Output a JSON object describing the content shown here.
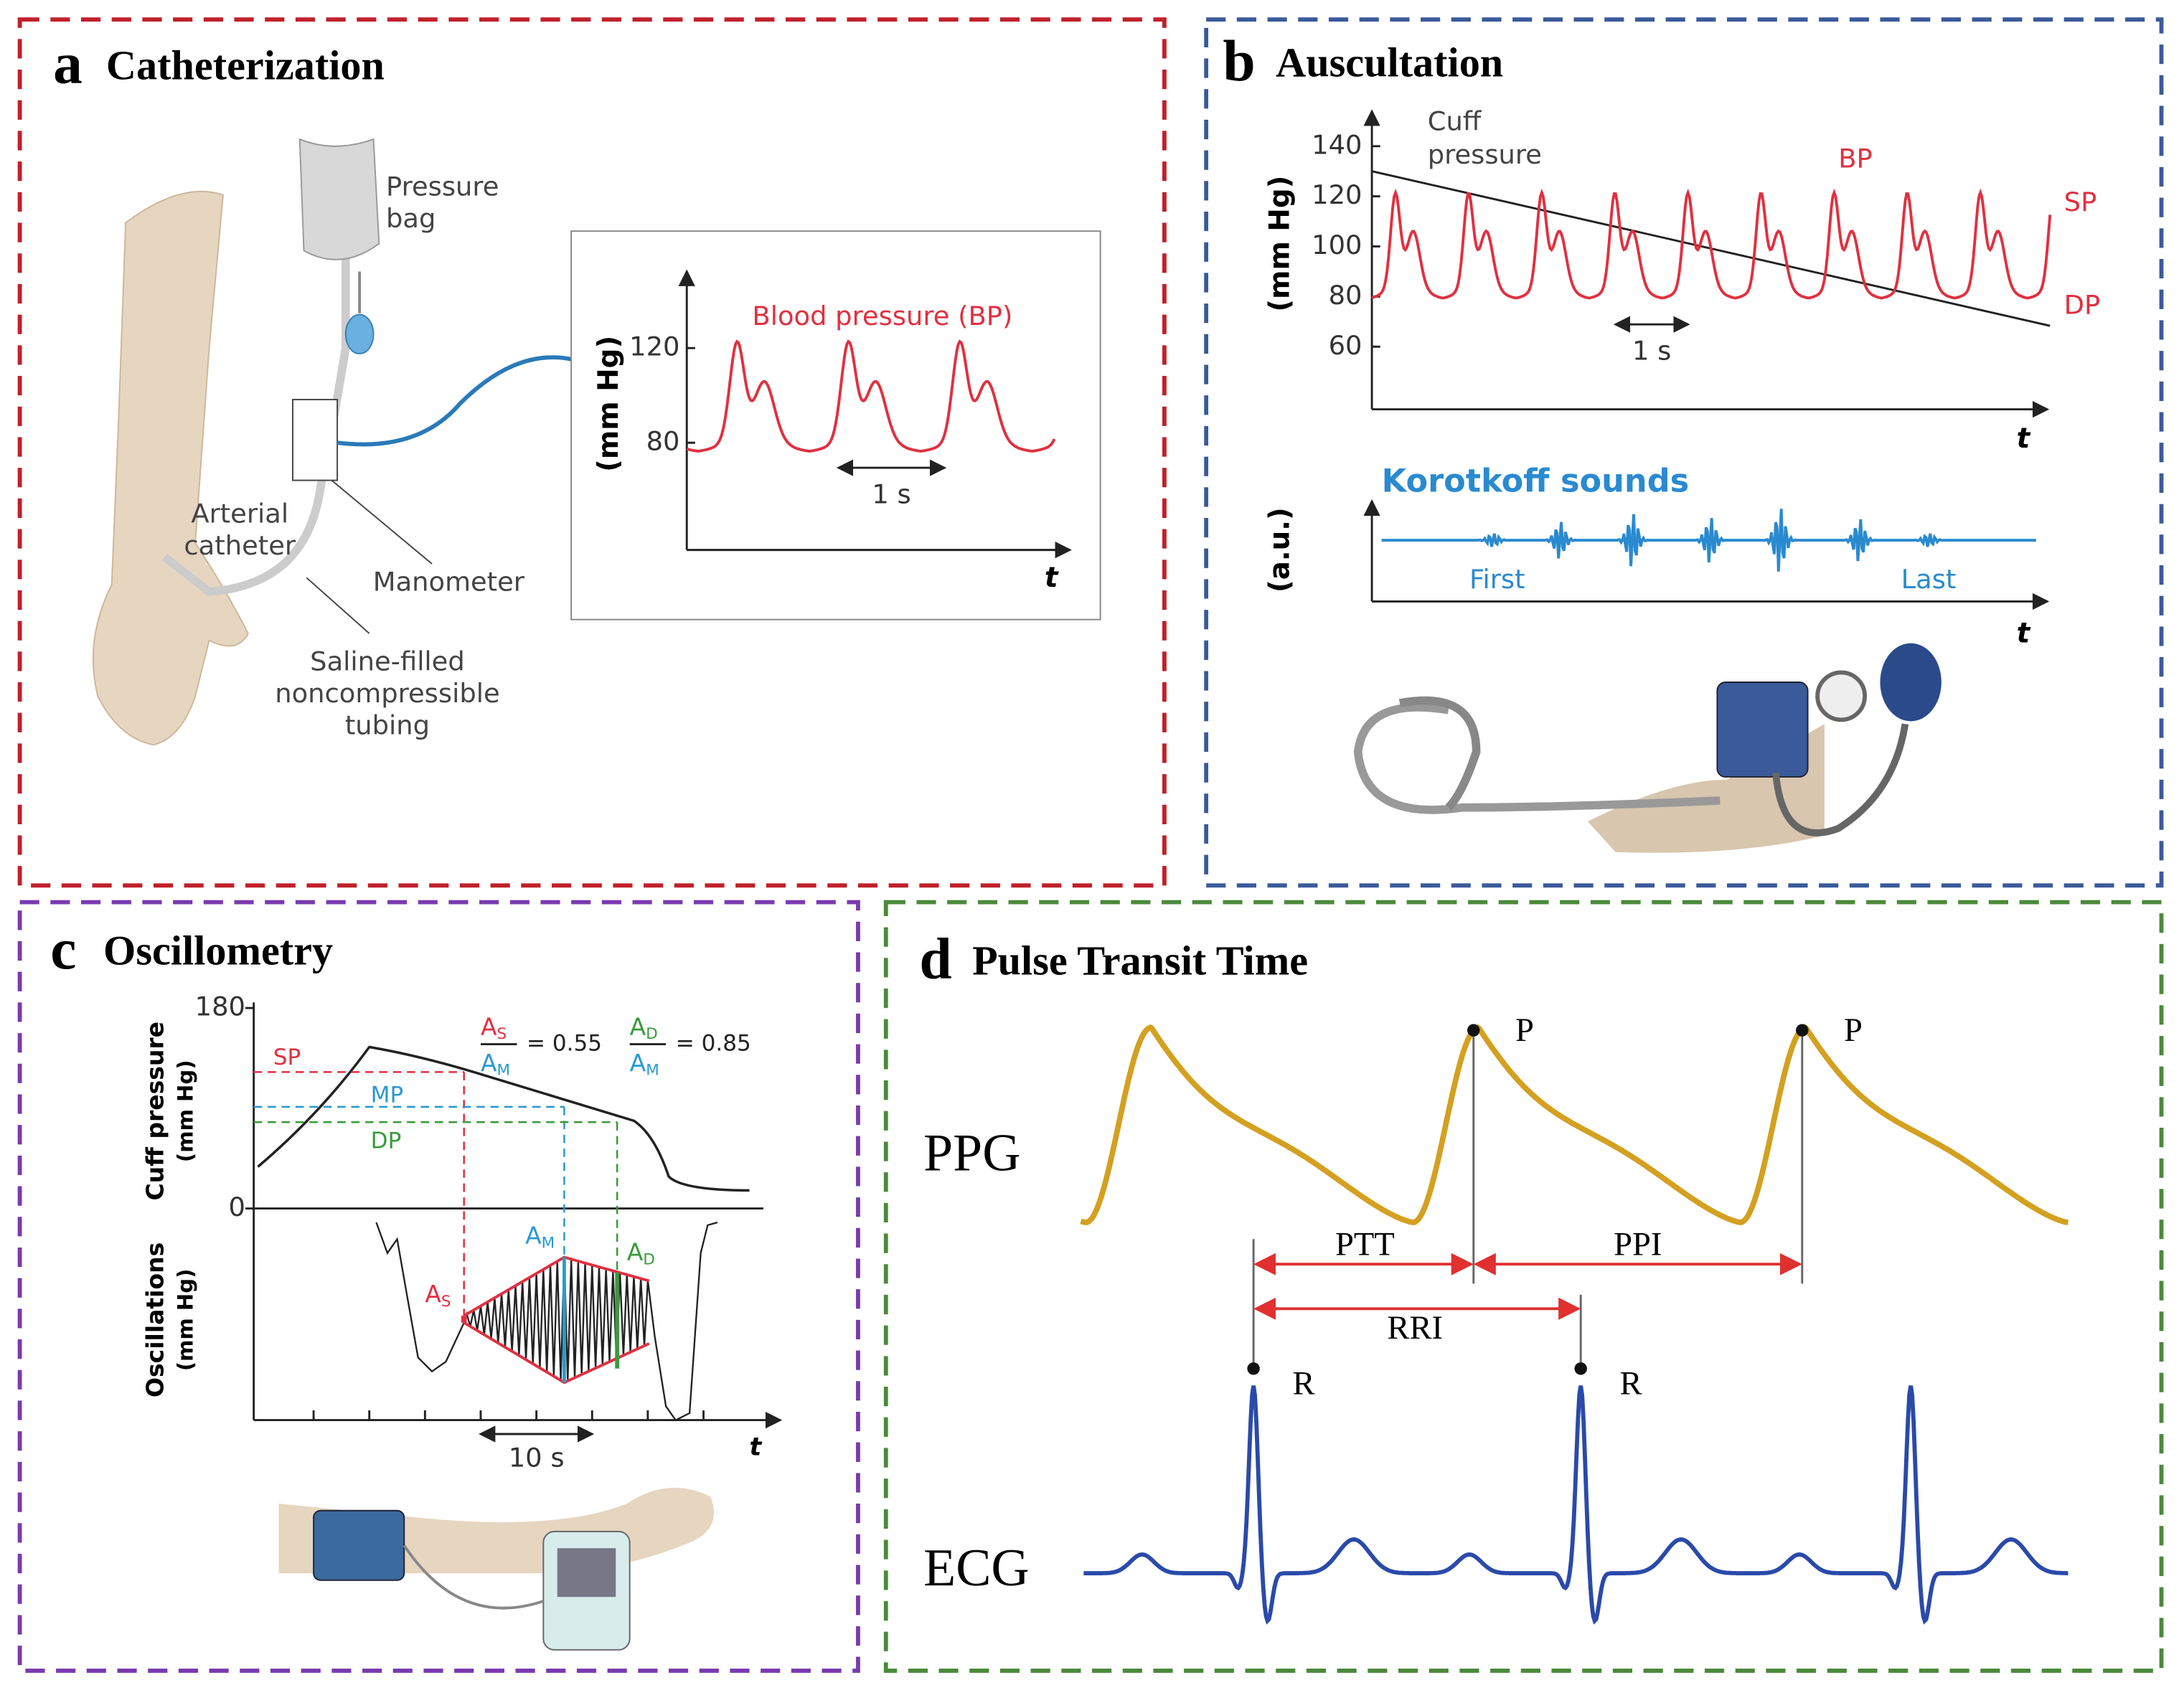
{
  "panel_a": {
    "letter": "a",
    "title": "Catheterization",
    "pressure_bag": [
      "Pressure",
      "bag"
    ],
    "arterial_catheter": [
      "Arterial",
      "catheter"
    ],
    "manometer": "Manometer",
    "tubing": [
      "Saline-filled",
      "noncompressible",
      "tubing"
    ],
    "y_label": "(mm Hg)",
    "yticks": [
      120,
      80
    ],
    "series_label": "Blood pressure (BP)",
    "time_scale": "1 s",
    "x_label": "t"
  },
  "panel_b": {
    "letter": "b",
    "title": "Auscultation",
    "cuff_pressure": [
      "Cuff",
      "pressure"
    ],
    "y_label": "(mm Hg)",
    "yticks": [
      140,
      120,
      100,
      80,
      60
    ],
    "bp": "BP",
    "sp": "SP",
    "dp": "DP",
    "time_scale": "1 s",
    "x_label": "t",
    "korotkoff": "Korotkoff sounds",
    "y2_label": "(a.u.)",
    "first": "First",
    "last": "Last",
    "x2_label": "t"
  },
  "panel_c": {
    "letter": "c",
    "title": "Oscillometry",
    "y_label": [
      "Cuff pressure",
      "(mm Hg)"
    ],
    "yticks": [
      180,
      0
    ],
    "sp": "SP",
    "mp": "MP",
    "dp": "DP",
    "ratio_s": {
      "num": [
        "A",
        "S"
      ],
      "den": [
        "A",
        "M"
      ],
      "value": "= 0.55"
    },
    "ratio_d": {
      "num": [
        "A",
        "D"
      ],
      "den": [
        "A",
        "M"
      ],
      "value": "= 0.85"
    },
    "y2_label": [
      "Oscillations",
      "(mm Hg)"
    ],
    "a_s": [
      "A",
      "S"
    ],
    "a_m": [
      "A",
      "M"
    ],
    "a_d": [
      "A",
      "D"
    ],
    "time_scale": "10 s",
    "x_label": "t"
  },
  "panel_d": {
    "letter": "d",
    "title": "Pulse Transit Time",
    "ppg": "PPG",
    "ecg": "ECG",
    "p_labels": [
      "P",
      "P"
    ],
    "r_labels": [
      "R",
      "R"
    ],
    "ptt": "PTT",
    "ppi": "PPI",
    "rri": "RRI"
  }
}
